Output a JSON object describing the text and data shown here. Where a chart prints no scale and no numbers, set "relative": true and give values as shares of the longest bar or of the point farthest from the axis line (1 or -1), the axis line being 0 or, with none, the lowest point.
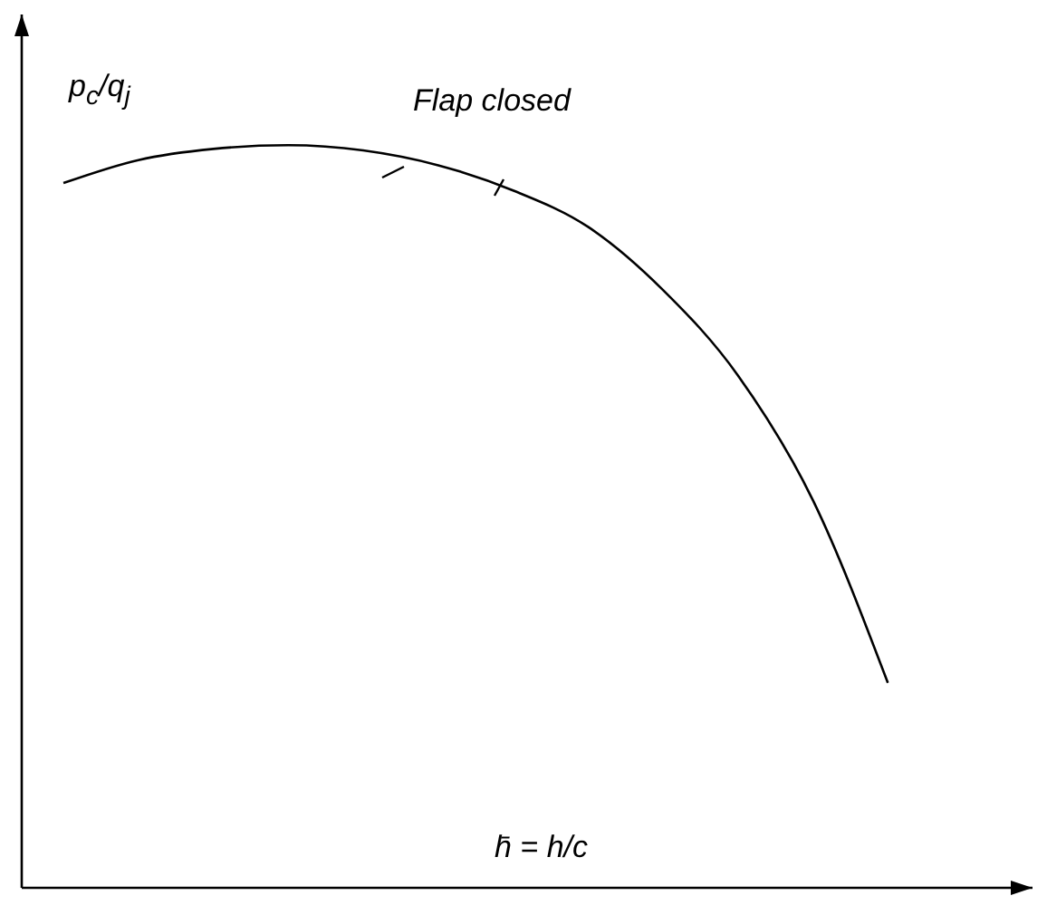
{
  "chart_data": {
    "type": "line",
    "relative": true,
    "xlabel": "h̄ = h/c",
    "ylabel": "p$_{c}$/q$_{j}$",
    "annotations": [
      "Flap closed"
    ],
    "categories": [
      null,
      null,
      null,
      null,
      null,
      null,
      null,
      null,
      null,
      null,
      null,
      null
    ],
    "series": [
      {
        "color": "#000000",
        "values": [
          0.949,
          0.98,
          0.995,
          1,
          0.993,
          0.973,
          0.939,
          0.89,
          0.805,
          0.69,
          0.522,
          0.276
        ]
      }
    ],
    "marker": "none",
    "line_style": "solid",
    "grid": false,
    "legend": false
  }
}
